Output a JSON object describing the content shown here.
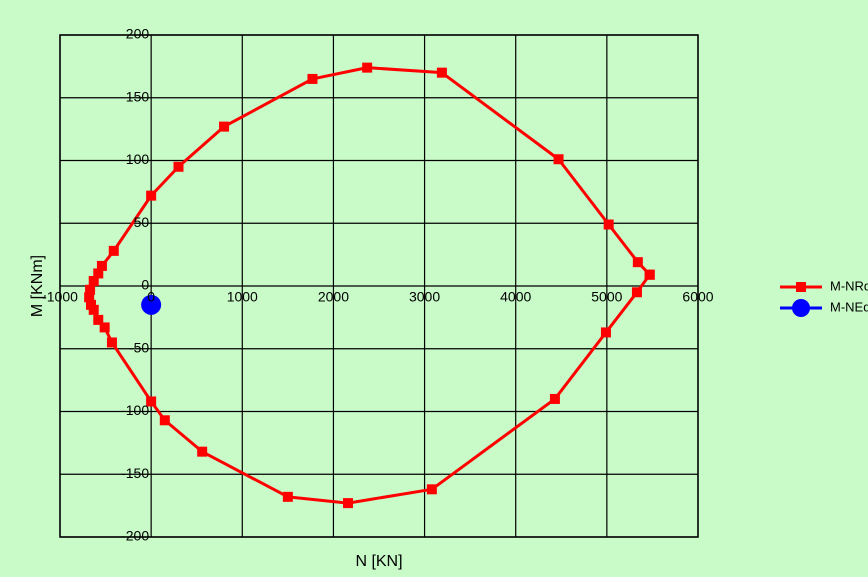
{
  "chart_data": {
    "type": "scatter",
    "title": "",
    "xlabel": "N [KN]",
    "ylabel": "M [KNm]",
    "xlim": [
      -1000,
      6000
    ],
    "ylim": [
      -200,
      200
    ],
    "x_ticks": [
      -1000,
      0,
      1000,
      2000,
      3000,
      4000,
      5000,
      6000
    ],
    "y_ticks": [
      -200,
      -150,
      -100,
      -50,
      0,
      50,
      100,
      150,
      200
    ],
    "x_tick_labels": [
      "-1000",
      "0",
      "1000",
      "2000",
      "3000",
      "4000",
      "5000",
      "6000"
    ],
    "y_tick_labels": [
      "-200",
      "-150",
      "-100",
      "-50",
      "0",
      "50",
      "100",
      "150",
      "200"
    ],
    "grid": true,
    "legend_position": "right",
    "series": [
      {
        "name": "M-NRd",
        "color": "#ff0000",
        "marker": "square",
        "line": true,
        "x": [
          5470,
          5340,
          5020,
          4470,
          3190,
          2370,
          1770,
          800,
          300,
          0,
          -410,
          -540,
          -580,
          -630,
          -670,
          -680,
          -660,
          -630,
          -580,
          -510,
          -430,
          0,
          150,
          560,
          1500,
          2160,
          3080,
          4430,
          4990,
          5330,
          5470
        ],
        "y": [
          9,
          19,
          49,
          101,
          170,
          174,
          165,
          127,
          95,
          72,
          28,
          16,
          10,
          4,
          -3,
          -9,
          -15,
          -19,
          -27,
          -33,
          -45,
          -92,
          -107,
          -132,
          -168,
          -173,
          -162,
          -90,
          -37,
          -5,
          9
        ]
      },
      {
        "name": "M-NEd",
        "color": "#0000ff",
        "marker": "circle",
        "line": false,
        "x": [
          0
        ],
        "y": [
          -15
        ]
      }
    ]
  }
}
